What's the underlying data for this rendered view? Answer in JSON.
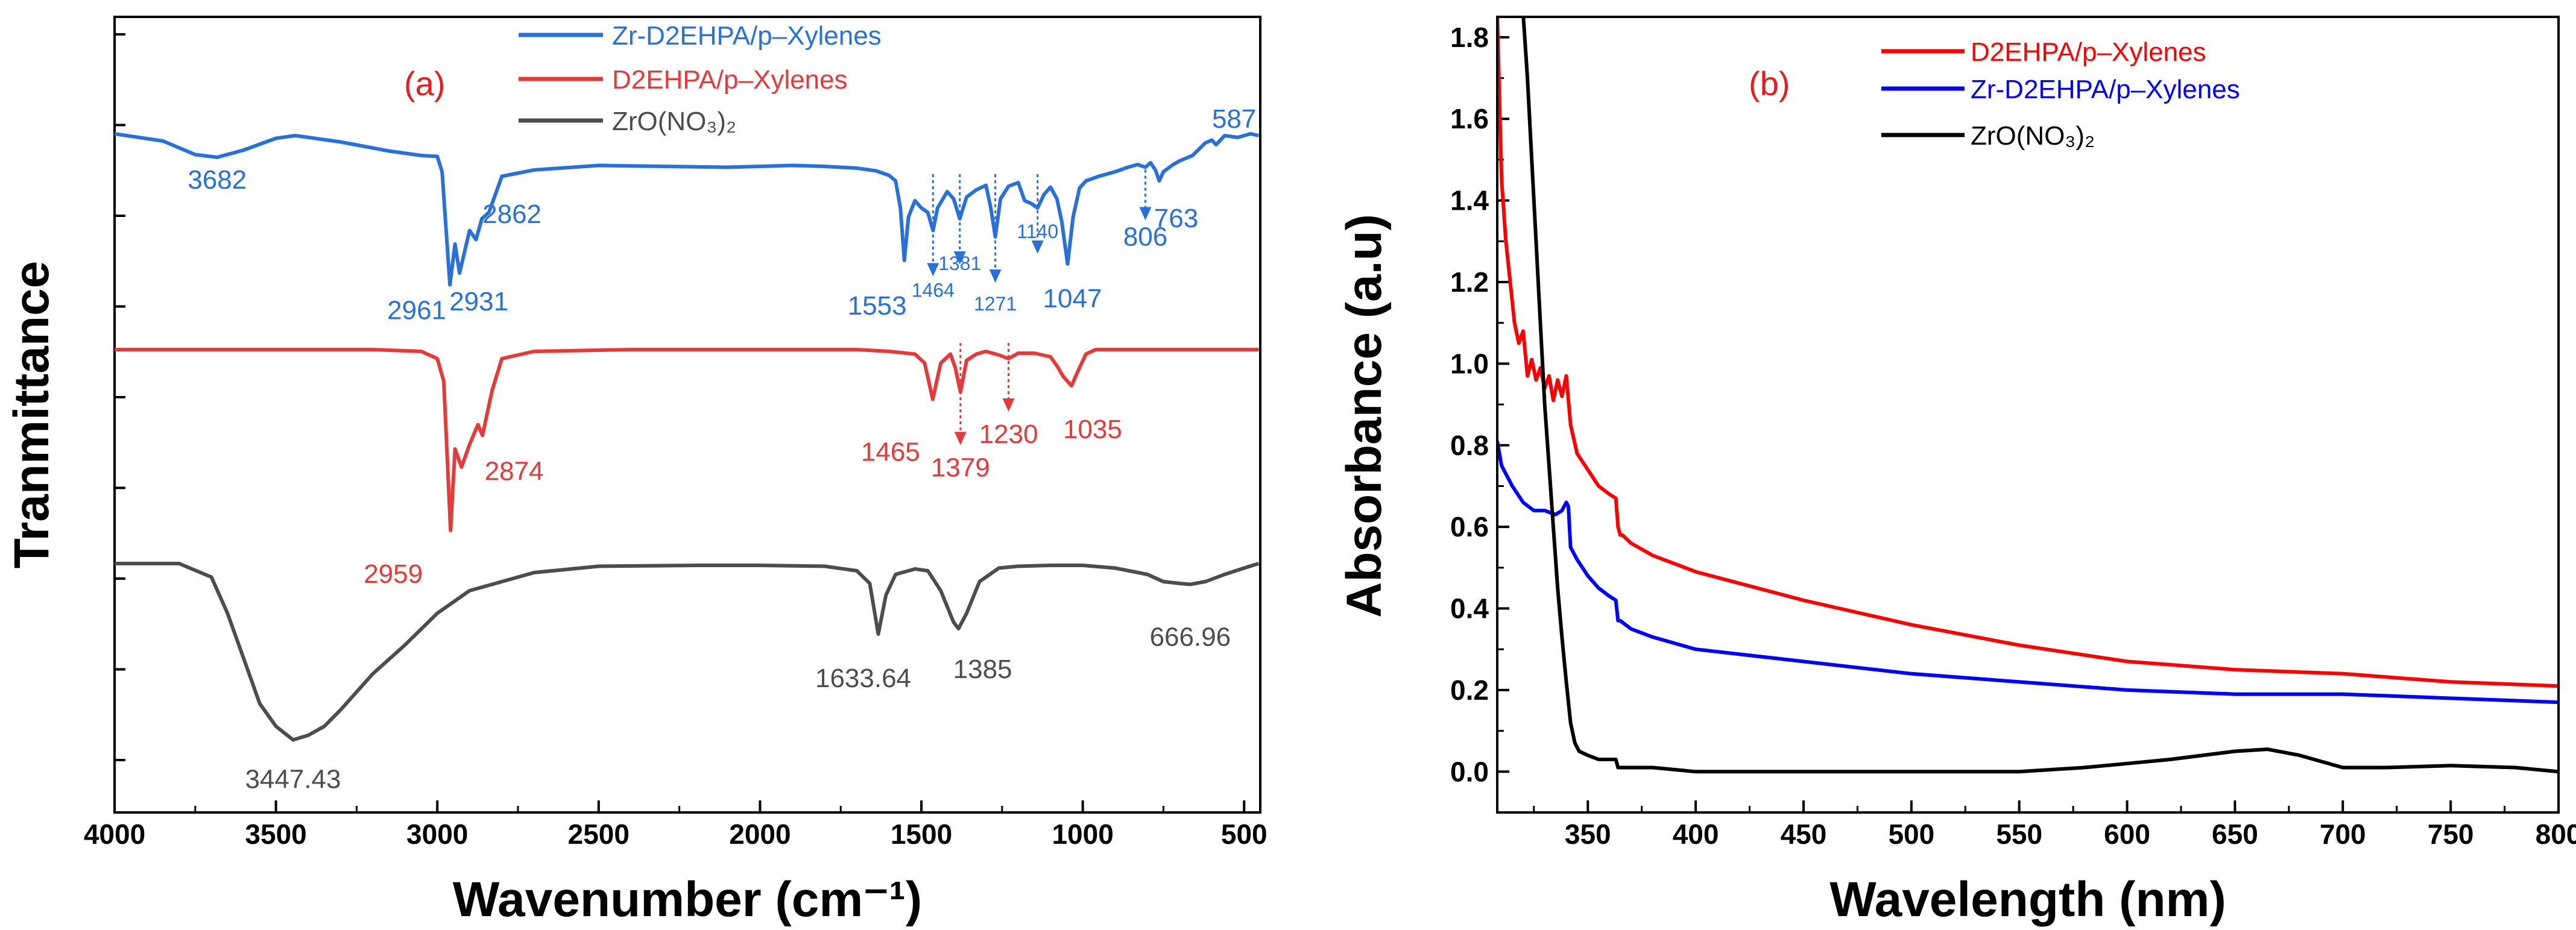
{
  "chart_data": [
    {
      "panel": "(a)",
      "type": "line",
      "xlabel": "Wavenumber (cm⁻¹)",
      "ylabel": "Tranmittance",
      "xlim": [
        4000,
        450
      ],
      "x_ticks": [
        "4000",
        "3500",
        "3000",
        "2500",
        "2000",
        "1500",
        "1000",
        "500"
      ],
      "legend_position": "top-center",
      "colors": {
        "Zr-D2EHPA/p–Xylenes": "#2970d9",
        "D2EHPA/p–Xylenes": "#e43a3a",
        "ZrO(NO3)2": "#4d4d4d"
      },
      "series": [
        {
          "name": "Zr-D2EHPA/p–Xylenes",
          "legend_label": "Zr-D2EHPA/p–Xylenes",
          "color": "#2970d9",
          "x": [
            4000,
            3850,
            3750,
            3682,
            3600,
            3500,
            3440,
            3300,
            3150,
            3050,
            3000,
            2985,
            2961,
            2945,
            2931,
            2900,
            2880,
            2862,
            2840,
            2800,
            2700,
            2500,
            2300,
            2100,
            2000,
            1900,
            1800,
            1700,
            1640,
            1600,
            1580,
            1565,
            1553,
            1540,
            1520,
            1500,
            1480,
            1464,
            1450,
            1420,
            1400,
            1381,
            1360,
            1330,
            1300,
            1285,
            1271,
            1255,
            1230,
            1200,
            1180,
            1160,
            1140,
            1120,
            1100,
            1080,
            1065,
            1047,
            1030,
            1010,
            990,
            950,
            900,
            860,
            830,
            806,
            790,
            775,
            763,
            750,
            720,
            700,
            660,
            620,
            600,
            587,
            560,
            520,
            480,
            455
          ],
          "y": [
            0.52,
            0.44,
            0.29,
            0.26,
            0.34,
            0.47,
            0.5,
            0.43,
            0.33,
            0.28,
            0.27,
            0.1,
            -1.15,
            -0.7,
            -1.02,
            -0.55,
            -0.65,
            -0.42,
            -0.35,
            0.05,
            0.12,
            0.17,
            0.16,
            0.15,
            0.16,
            0.17,
            0.16,
            0.14,
            0.11,
            0.06,
            0.0,
            -0.3,
            -0.88,
            -0.4,
            -0.22,
            -0.3,
            -0.35,
            -0.55,
            -0.3,
            -0.12,
            -0.2,
            -0.42,
            -0.18,
            -0.1,
            -0.05,
            -0.3,
            -0.62,
            -0.2,
            -0.06,
            -0.02,
            -0.22,
            -0.25,
            -0.3,
            -0.15,
            -0.07,
            -0.2,
            -0.45,
            -0.92,
            -0.4,
            -0.08,
            -0.0,
            0.05,
            0.1,
            0.15,
            0.18,
            0.15,
            0.2,
            0.12,
            0.0,
            0.1,
            0.18,
            0.22,
            0.28,
            0.42,
            0.45,
            0.4,
            0.5,
            0.48,
            0.52,
            0.5
          ],
          "annotations": [
            {
              "label": "3682",
              "x": 3682,
              "style": "normal"
            },
            {
              "label": "2961",
              "x": 2961,
              "style": "normal"
            },
            {
              "label": "2931",
              "x": 2931,
              "style": "normal"
            },
            {
              "label": "2862",
              "x": 2862,
              "style": "normal"
            },
            {
              "label": "1553",
              "x": 1553,
              "style": "normal"
            },
            {
              "label": "1464",
              "x": 1464,
              "style": "small",
              "arrow": true
            },
            {
              "label": "1381",
              "x": 1381,
              "style": "small",
              "arrow": true
            },
            {
              "label": "1271",
              "x": 1271,
              "style": "small",
              "arrow": true
            },
            {
              "label": "1140",
              "x": 1140,
              "style": "small",
              "arrow": true
            },
            {
              "label": "1047",
              "x": 1047,
              "style": "normal"
            },
            {
              "label": "806",
              "x": 806,
              "style": "normal",
              "arrow": true
            },
            {
              "label": "763",
              "x": 763,
              "style": "normal"
            },
            {
              "label": "587",
              "x": 587,
              "style": "normal"
            }
          ]
        },
        {
          "name": "D2EHPA/p–Xylenes",
          "legend_label": "D2EHPA/p–Xylenes",
          "color": "#e43a3a",
          "x": [
            4000,
            3600,
            3200,
            3050,
            3000,
            2980,
            2959,
            2945,
            2925,
            2900,
            2874,
            2860,
            2830,
            2800,
            2700,
            2400,
            2000,
            1700,
            1600,
            1520,
            1490,
            1465,
            1440,
            1410,
            1395,
            1379,
            1360,
            1330,
            1300,
            1260,
            1230,
            1200,
            1150,
            1100,
            1080,
            1060,
            1035,
            1010,
            990,
            960,
            900,
            800,
            700,
            600,
            455
          ],
          "y": [
            0.0,
            0.0,
            0.0,
            -0.02,
            -0.1,
            -0.35,
            -2.0,
            -1.1,
            -1.3,
            -1.05,
            -0.83,
            -0.95,
            -0.45,
            -0.1,
            -0.02,
            0.0,
            0.0,
            0.0,
            -0.02,
            -0.05,
            -0.15,
            -0.55,
            -0.15,
            -0.05,
            -0.2,
            -0.47,
            -0.12,
            -0.05,
            -0.02,
            -0.06,
            -0.1,
            -0.04,
            -0.04,
            -0.08,
            -0.18,
            -0.3,
            -0.4,
            -0.2,
            -0.05,
            0.0,
            0.0,
            0.0,
            0.0,
            0.0,
            0.0
          ],
          "annotations": [
            {
              "label": "2959",
              "x": 2959,
              "style": "normal"
            },
            {
              "label": "2874",
              "x": 2874,
              "style": "normal"
            },
            {
              "label": "1465",
              "x": 1465,
              "style": "normal"
            },
            {
              "label": "1379",
              "x": 1379,
              "style": "normal",
              "arrow": true
            },
            {
              "label": "1230",
              "x": 1230,
              "style": "normal",
              "arrow": true
            },
            {
              "label": "1035",
              "x": 1035,
              "style": "normal"
            }
          ]
        },
        {
          "name": "ZrO(NO3)2",
          "legend_label": "ZrO(NO₃)₂",
          "color": "#4d4d4d",
          "x": [
            4000,
            3800,
            3700,
            3650,
            3600,
            3550,
            3500,
            3447,
            3400,
            3350,
            3300,
            3250,
            3200,
            3100,
            3000,
            2900,
            2700,
            2500,
            2200,
            2000,
            1800,
            1700,
            1660,
            1633.64,
            1610,
            1580,
            1520,
            1480,
            1440,
            1400,
            1385,
            1360,
            1320,
            1260,
            1200,
            1100,
            1000,
            900,
            800,
            750,
            700,
            666.96,
            620,
            560,
            500,
            455
          ],
          "y": [
            0.0,
            0.0,
            -0.15,
            -0.55,
            -1.05,
            -1.55,
            -1.8,
            -1.95,
            -1.9,
            -1.8,
            -1.62,
            -1.42,
            -1.22,
            -0.9,
            -0.55,
            -0.3,
            -0.1,
            -0.03,
            -0.02,
            -0.02,
            -0.03,
            -0.08,
            -0.22,
            -0.78,
            -0.35,
            -0.12,
            -0.06,
            -0.08,
            -0.3,
            -0.65,
            -0.72,
            -0.55,
            -0.2,
            -0.05,
            -0.03,
            -0.02,
            -0.02,
            -0.05,
            -0.12,
            -0.2,
            -0.22,
            -0.23,
            -0.2,
            -0.12,
            -0.05,
            0.0
          ],
          "annotations": [
            {
              "label": "3447.43",
              "x": 3447,
              "style": "normal"
            },
            {
              "label": "1633.64",
              "x": 1633.64,
              "style": "normal"
            },
            {
              "label": "1385",
              "x": 1385,
              "style": "normal"
            },
            {
              "label": "666.96",
              "x": 666.96,
              "style": "normal"
            }
          ]
        }
      ]
    },
    {
      "panel": "(b)",
      "type": "line",
      "xlabel": "Wavelength (nm)",
      "ylabel": "Absorbance (a.u)",
      "xlim": [
        308,
        800
      ],
      "ylim": [
        -0.1,
        1.85
      ],
      "x_ticks": [
        "350",
        "400",
        "450",
        "500",
        "550",
        "600",
        "650",
        "700",
        "750",
        "800"
      ],
      "y_ticks": [
        "0.0",
        "0.2",
        "0.4",
        "0.6",
        "0.8",
        "1.0",
        "1.2",
        "1.4",
        "1.6",
        "1.8"
      ],
      "legend_position": "top-center",
      "colors": {
        "D2EHPA/p–Xylenes": "#ff0000",
        "Zr-D2EHPA/p–Xylenes": "#0000ff",
        "ZrO(NO3)2": "#000000"
      },
      "series": [
        {
          "name": "D2EHPA/p–Xylenes",
          "legend_label": "D2EHPA/p–Xylenes",
          "color": "#ff0000",
          "x": [
            308,
            309,
            310,
            312,
            314,
            316,
            318,
            320,
            322,
            324,
            326,
            328,
            330,
            332,
            334,
            336,
            338,
            340,
            342,
            345,
            350,
            355,
            360,
            363,
            364,
            365,
            366,
            370,
            380,
            400,
            450,
            500,
            550,
            600,
            650,
            700,
            750,
            800
          ],
          "y": [
            1.86,
            1.65,
            1.45,
            1.3,
            1.2,
            1.1,
            1.05,
            1.08,
            0.97,
            1.01,
            0.96,
            0.99,
            0.94,
            0.97,
            0.91,
            0.96,
            0.92,
            0.97,
            0.85,
            0.78,
            0.74,
            0.7,
            0.68,
            0.67,
            0.6,
            0.58,
            0.58,
            0.56,
            0.53,
            0.49,
            0.42,
            0.36,
            0.31,
            0.27,
            0.25,
            0.24,
            0.22,
            0.21
          ]
        },
        {
          "name": "Zr-D2EHPA/p–Xylenes",
          "legend_label": "Zr-D2EHPA/p–Xylenes",
          "color": "#0000ff",
          "x": [
            308,
            310,
            315,
            320,
            325,
            330,
            335,
            338,
            340,
            341,
            342,
            345,
            350,
            355,
            360,
            363,
            364,
            365,
            370,
            380,
            400,
            450,
            500,
            550,
            600,
            650,
            700,
            750,
            800
          ],
          "y": [
            0.81,
            0.75,
            0.7,
            0.66,
            0.64,
            0.64,
            0.63,
            0.64,
            0.66,
            0.65,
            0.55,
            0.52,
            0.48,
            0.45,
            0.43,
            0.42,
            0.37,
            0.37,
            0.35,
            0.33,
            0.3,
            0.27,
            0.24,
            0.22,
            0.2,
            0.19,
            0.19,
            0.18,
            0.17
          ]
        },
        {
          "name": "ZrO(NO3)2",
          "legend_label": "ZrO(NO₃)₂",
          "color": "#000000",
          "x": [
            320,
            322,
            324,
            326,
            328,
            330,
            332,
            334,
            336,
            338,
            340,
            342,
            344,
            346,
            350,
            355,
            360,
            363,
            364,
            366,
            370,
            380,
            400,
            450,
            500,
            550,
            580,
            600,
            620,
            650,
            665,
            680,
            700,
            720,
            750,
            780,
            800
          ],
          "y": [
            1.86,
            1.7,
            1.5,
            1.3,
            1.1,
            0.9,
            0.75,
            0.6,
            0.45,
            0.33,
            0.22,
            0.12,
            0.07,
            0.05,
            0.04,
            0.03,
            0.03,
            0.03,
            0.01,
            0.01,
            0.01,
            0.01,
            0.0,
            0.0,
            0.0,
            0.0,
            0.01,
            0.02,
            0.03,
            0.05,
            0.055,
            0.04,
            0.01,
            0.01,
            0.015,
            0.01,
            0.0
          ]
        }
      ]
    }
  ]
}
